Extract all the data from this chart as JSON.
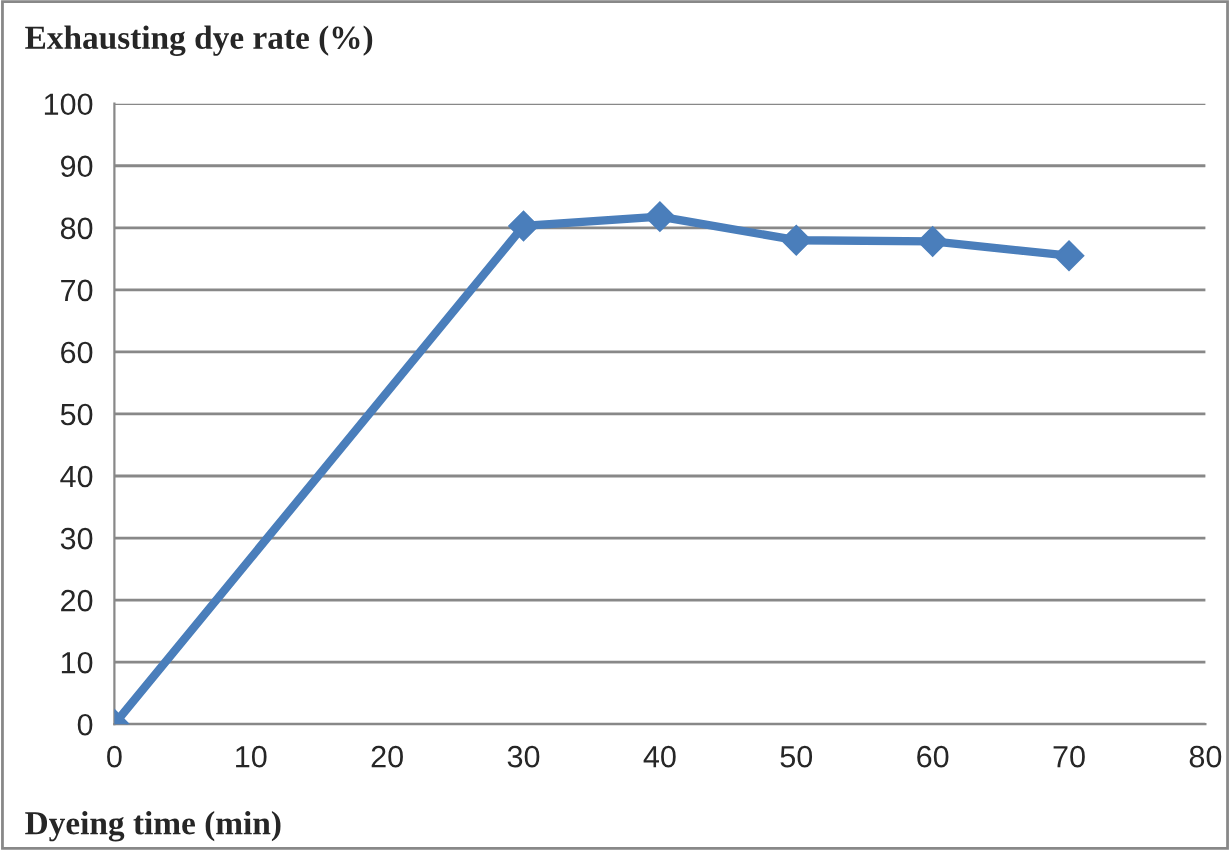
{
  "chart_data": {
    "type": "line",
    "ylabel": "Exhausting dye rate (%)",
    "xlabel": "Dyeing time (min)",
    "x": [
      0,
      30,
      40,
      50,
      60,
      70
    ],
    "series": [
      {
        "color": "#4a7ebb",
        "values": [
          0,
          80.3,
          81.8,
          78,
          77.8,
          75.5
        ]
      }
    ],
    "xlim": [
      0,
      80
    ],
    "xticks": [
      0,
      10,
      20,
      30,
      40,
      50,
      60,
      70,
      80
    ],
    "ylim": [
      0,
      100
    ],
    "yticks": [
      0,
      10,
      20,
      30,
      40,
      50,
      60,
      70,
      80,
      90,
      100
    ],
    "grid": "y",
    "marker": "diamond",
    "line_style": "solid"
  }
}
